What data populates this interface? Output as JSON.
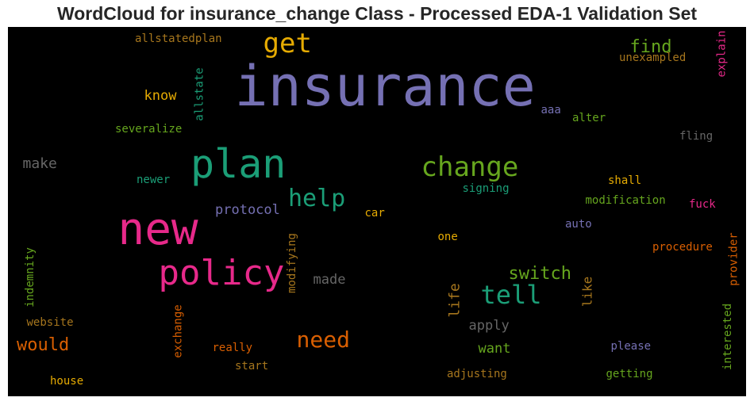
{
  "chart_data": {
    "type": "wordcloud",
    "title": "WordCloud for insurance_change Class - Processed EDA-1 Validation Set",
    "background": "#000000",
    "words": [
      {
        "text": "insurance",
        "color": "#7570b3",
        "vertical": false
      },
      {
        "text": "new",
        "color": "#e7298a",
        "vertical": false
      },
      {
        "text": "plan",
        "color": "#1b9e77",
        "vertical": false
      },
      {
        "text": "policy",
        "color": "#e7298a",
        "vertical": false
      },
      {
        "text": "change",
        "color": "#66a61e",
        "vertical": false
      },
      {
        "text": "get",
        "color": "#e6ab02",
        "vertical": false
      },
      {
        "text": "tell",
        "color": "#1b9e77",
        "vertical": false
      },
      {
        "text": "help",
        "color": "#1b9e77",
        "vertical": false
      },
      {
        "text": "need",
        "color": "#d95f02",
        "vertical": false
      },
      {
        "text": "switch",
        "color": "#66a61e",
        "vertical": false
      },
      {
        "text": "find",
        "color": "#66a61e",
        "vertical": false
      },
      {
        "text": "would",
        "color": "#d95f02",
        "vertical": false
      },
      {
        "text": "protocol",
        "color": "#7570b3",
        "vertical": false
      },
      {
        "text": "make",
        "color": "#666666",
        "vertical": false
      },
      {
        "text": "made",
        "color": "#666666",
        "vertical": false
      },
      {
        "text": "apply",
        "color": "#666666",
        "vertical": false
      },
      {
        "text": "life",
        "color": "#a6761d",
        "vertical": true
      },
      {
        "text": "like",
        "color": "#a6761d",
        "vertical": true
      },
      {
        "text": "know",
        "color": "#e6ab02",
        "vertical": false
      },
      {
        "text": "want",
        "color": "#66a61e",
        "vertical": false
      },
      {
        "text": "procedure",
        "color": "#d95f02",
        "vertical": false
      },
      {
        "text": "modification",
        "color": "#66a61e",
        "vertical": false
      },
      {
        "text": "severalize",
        "color": "#66a61e",
        "vertical": false
      },
      {
        "text": "allstatedplan",
        "color": "#a6761d",
        "vertical": false
      },
      {
        "text": "unexampled",
        "color": "#a6761d",
        "vertical": false
      },
      {
        "text": "explain",
        "color": "#e7298a",
        "vertical": true
      },
      {
        "text": "allstate",
        "color": "#1b9e77",
        "vertical": true
      },
      {
        "text": "aaa",
        "color": "#7570b3",
        "vertical": false
      },
      {
        "text": "alter",
        "color": "#66a61e",
        "vertical": false
      },
      {
        "text": "fling",
        "color": "#666666",
        "vertical": false
      },
      {
        "text": "newer",
        "color": "#1b9e77",
        "vertical": false
      },
      {
        "text": "signing",
        "color": "#1b9e77",
        "vertical": false
      },
      {
        "text": "shall",
        "color": "#e6ab02",
        "vertical": false
      },
      {
        "text": "car",
        "color": "#e6ab02",
        "vertical": false
      },
      {
        "text": "fuck",
        "color": "#e7298a",
        "vertical": false
      },
      {
        "text": "auto",
        "color": "#7570b3",
        "vertical": false
      },
      {
        "text": "one",
        "color": "#e6ab02",
        "vertical": false
      },
      {
        "text": "modifying",
        "color": "#a6761d",
        "vertical": true
      },
      {
        "text": "indemnity",
        "color": "#66a61e",
        "vertical": true
      },
      {
        "text": "provider",
        "color": "#d95f02",
        "vertical": true
      },
      {
        "text": "website",
        "color": "#a6761d",
        "vertical": false
      },
      {
        "text": "exchange",
        "color": "#d95f02",
        "vertical": true
      },
      {
        "text": "really",
        "color": "#d95f02",
        "vertical": false
      },
      {
        "text": "please",
        "color": "#7570b3",
        "vertical": false
      },
      {
        "text": "interested",
        "color": "#66a61e",
        "vertical": true
      },
      {
        "text": "start",
        "color": "#a6761d",
        "vertical": false
      },
      {
        "text": "adjusting",
        "color": "#a6761d",
        "vertical": false
      },
      {
        "text": "getting",
        "color": "#66a61e",
        "vertical": false
      },
      {
        "text": "house",
        "color": "#e6ab02",
        "vertical": false
      }
    ]
  }
}
